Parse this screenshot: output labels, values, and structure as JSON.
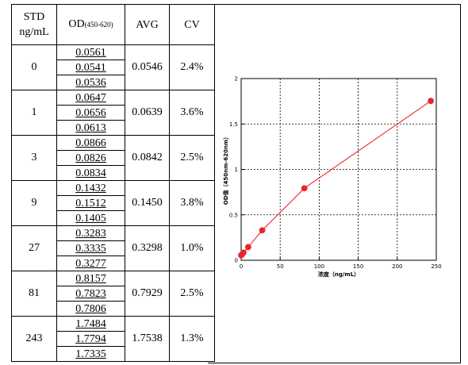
{
  "table": {
    "headers": {
      "std_line1": "STD",
      "std_line2": "ng/mL",
      "od": "OD",
      "od_sub": "(450-620)",
      "avg": "AVG",
      "cv": "CV"
    },
    "groups": [
      {
        "std": "0",
        "od": [
          "0.0561",
          "0.0541",
          "0.0536"
        ],
        "avg": "0.0546",
        "cv": "2.4%"
      },
      {
        "std": "1",
        "od": [
          "0.0647",
          "0.0656",
          "0.0613"
        ],
        "avg": "0.0639",
        "cv": "3.6%"
      },
      {
        "std": "3",
        "od": [
          "0.0866",
          "0.0826",
          "0.0834"
        ],
        "avg": "0.0842",
        "cv": "2.5%"
      },
      {
        "std": "9",
        "od": [
          "0.1432",
          "0.1512",
          "0.1405"
        ],
        "avg": "0.1450",
        "cv": "3.8%"
      },
      {
        "std": "27",
        "od": [
          "0.3283",
          "0.3335",
          "0.3277"
        ],
        "avg": "0.3298",
        "cv": "1.0%"
      },
      {
        "std": "81",
        "od": [
          "0.8157",
          "0.7823",
          "0.7806"
        ],
        "avg": "0.7929",
        "cv": "2.5%"
      },
      {
        "std": "243",
        "od": [
          "1.7484",
          "1.7794",
          "1.7335"
        ],
        "avg": "1.7538",
        "cv": "1.3%"
      }
    ]
  },
  "chart_data": {
    "type": "scatter",
    "title": "",
    "xlabel": "浓度（ng/mL）",
    "ylabel": "OD值（450nm-620nm）",
    "xlim": [
      0,
      250
    ],
    "ylim": [
      0,
      2
    ],
    "x_ticks": [
      "0",
      "50",
      "100",
      "150",
      "200",
      "250"
    ],
    "y_ticks": [
      "0",
      "0.5",
      "1",
      "1.5",
      "2"
    ],
    "grid": true,
    "series": [
      {
        "x": [
          0,
          1,
          3,
          9,
          27,
          81,
          243
        ],
        "y": [
          0.0546,
          0.0639,
          0.0842,
          0.145,
          0.3298,
          0.7929,
          1.7538
        ],
        "color": "#e8262a"
      }
    ],
    "fit_curve_color": "#e8262a"
  }
}
